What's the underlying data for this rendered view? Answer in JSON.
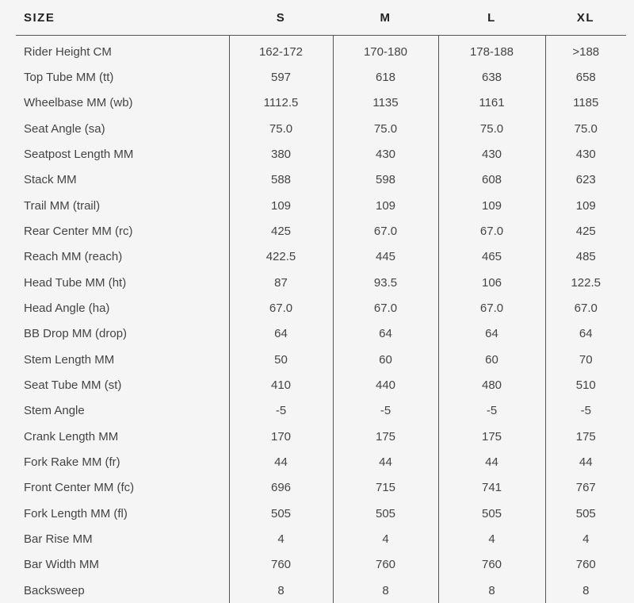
{
  "header": {
    "label": "SIZE",
    "sizes": [
      "S",
      "M",
      "L",
      "XL"
    ]
  },
  "rows": [
    {
      "label": "Rider Height CM",
      "values": [
        "162-172",
        "170-180",
        "178-188",
        ">188"
      ]
    },
    {
      "label": "Top Tube MM (tt)",
      "values": [
        "597",
        "618",
        "638",
        "658"
      ]
    },
    {
      "label": "Wheelbase MM (wb)",
      "values": [
        "1112.5",
        "1135",
        "1161",
        "1185"
      ]
    },
    {
      "label": "Seat Angle (sa)",
      "values": [
        "75.0",
        "75.0",
        "75.0",
        "75.0"
      ]
    },
    {
      "label": "Seatpost Length MM",
      "values": [
        "380",
        "430",
        "430",
        "430"
      ]
    },
    {
      "label": "Stack MM",
      "values": [
        "588",
        "598",
        "608",
        "623"
      ]
    },
    {
      "label": "Trail MM (trail)",
      "values": [
        "109",
        "109",
        "109",
        "109"
      ]
    },
    {
      "label": "Rear Center MM (rc)",
      "values": [
        "425",
        "67.0",
        "67.0",
        "425"
      ]
    },
    {
      "label": "Reach MM (reach)",
      "values": [
        "422.5",
        "445",
        "465",
        "485"
      ]
    },
    {
      "label": "Head Tube MM (ht)",
      "values": [
        "87",
        "93.5",
        "106",
        "122.5"
      ]
    },
    {
      "label": "Head Angle (ha)",
      "values": [
        "67.0",
        "67.0",
        "67.0",
        "67.0"
      ]
    },
    {
      "label": "BB Drop MM (drop)",
      "values": [
        "64",
        "64",
        "64",
        "64"
      ]
    },
    {
      "label": "Stem Length MM",
      "values": [
        "50",
        "60",
        "60",
        "70"
      ]
    },
    {
      "label": "Seat Tube MM (st)",
      "values": [
        "410",
        "440",
        "480",
        "510"
      ]
    },
    {
      "label": "Stem Angle",
      "values": [
        "-5",
        "-5",
        "-5",
        "-5"
      ]
    },
    {
      "label": "Crank Length MM",
      "values": [
        "170",
        "175",
        "175",
        "175"
      ]
    },
    {
      "label": "Fork Rake MM (fr)",
      "values": [
        "44",
        "44",
        "44",
        "44"
      ]
    },
    {
      "label": "Front Center MM (fc)",
      "values": [
        "696",
        "715",
        "741",
        "767"
      ]
    },
    {
      "label": "Fork Length MM (fl)",
      "values": [
        "505",
        "505",
        "505",
        "505"
      ]
    },
    {
      "label": "Bar Rise MM",
      "values": [
        "4",
        "4",
        "4",
        "4"
      ]
    },
    {
      "label": "Bar Width MM",
      "values": [
        "760",
        "760",
        "760",
        "760"
      ]
    },
    {
      "label": "Backsweep",
      "values": [
        "8",
        "8",
        "8",
        "8"
      ]
    }
  ]
}
